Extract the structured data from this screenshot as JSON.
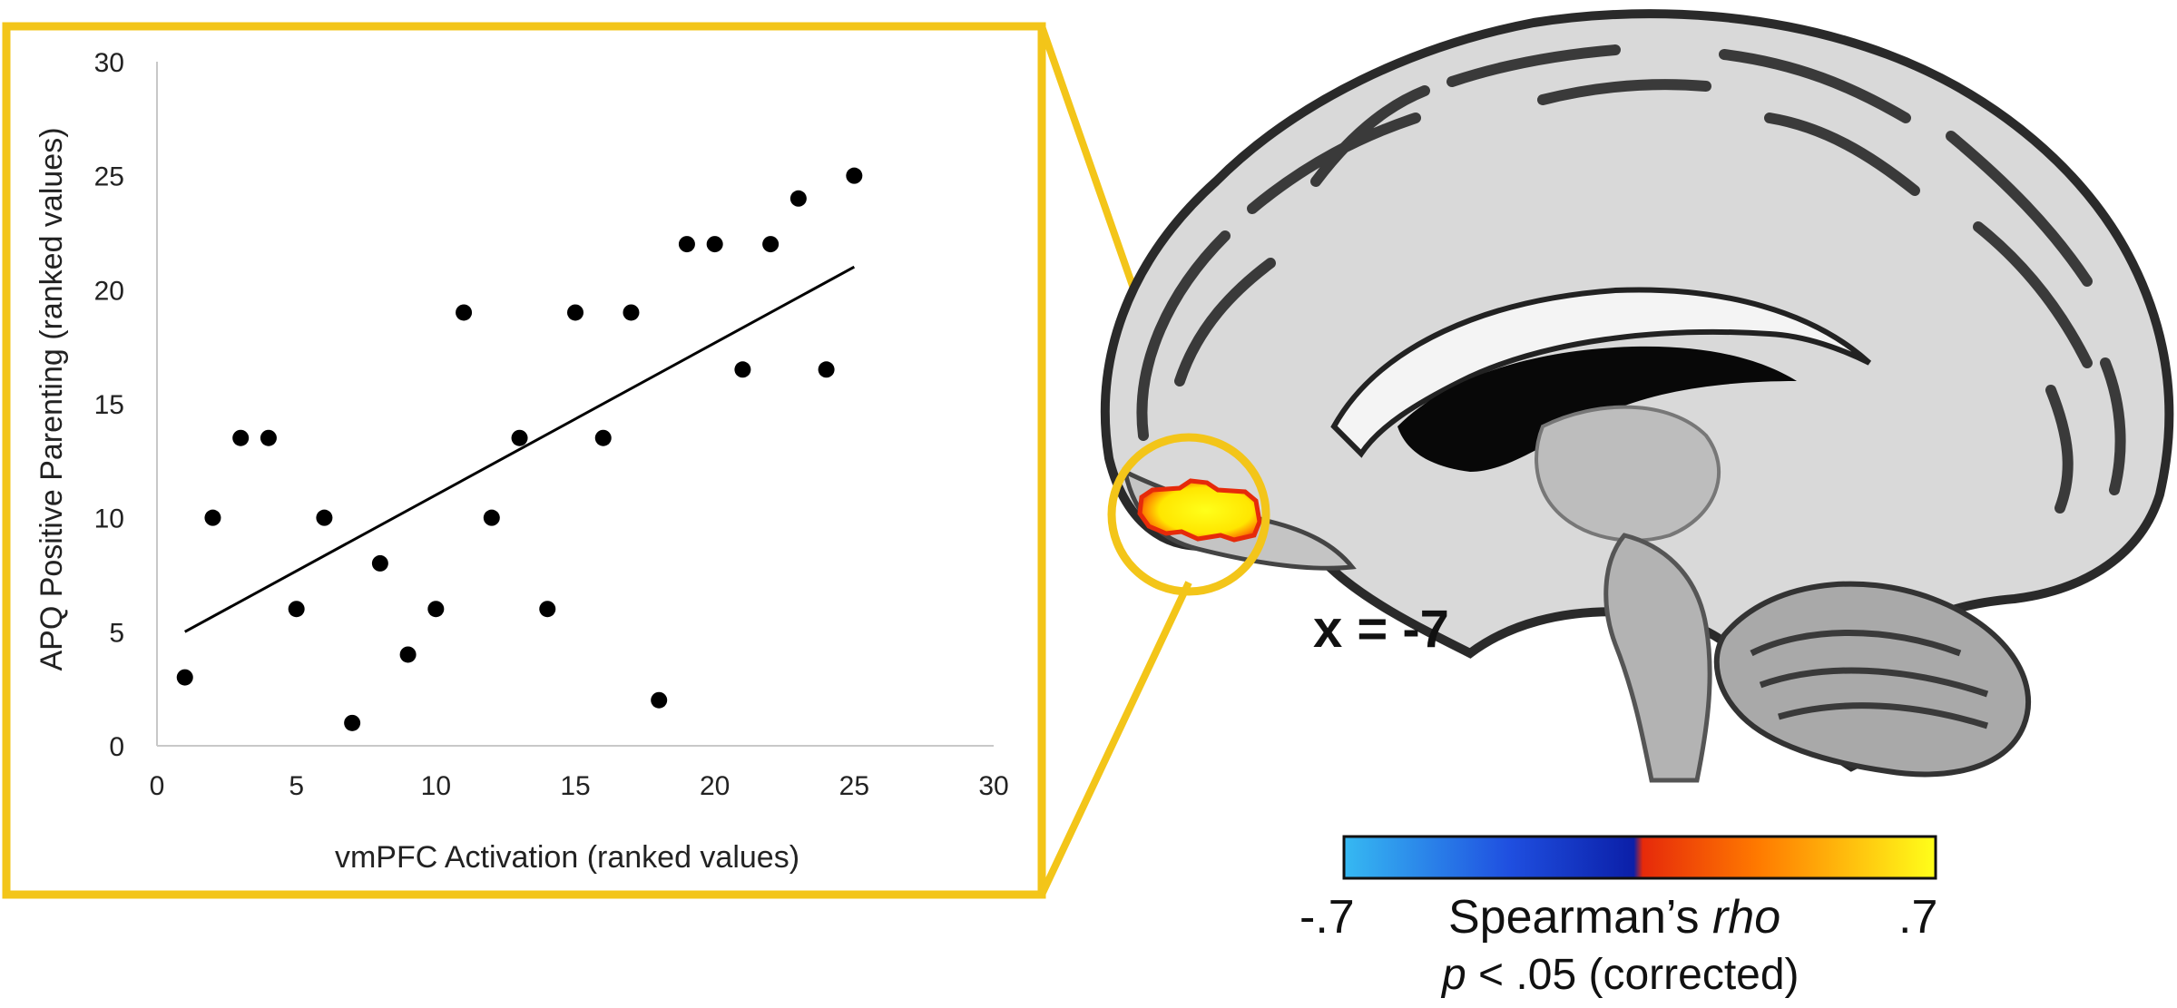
{
  "chart_data": {
    "type": "scatter",
    "title": "",
    "xlabel": "vmPFC Activation (ranked values)",
    "ylabel": "APQ Positive Parenting (ranked values)",
    "xlim": [
      0,
      30
    ],
    "ylim": [
      0,
      30
    ],
    "x_ticks": [
      "0",
      "5",
      "10",
      "15",
      "20",
      "25",
      "30"
    ],
    "y_ticks": [
      "0",
      "5",
      "10",
      "15",
      "20",
      "25",
      "30"
    ],
    "grid": false,
    "series": [
      {
        "x": [
          1,
          2,
          3,
          4,
          5,
          6,
          7,
          8,
          9,
          10,
          11,
          12,
          13,
          14,
          15,
          16,
          17,
          18,
          19,
          20,
          21,
          22,
          23,
          24,
          25
        ],
        "y": [
          3,
          10,
          13.5,
          13.5,
          6,
          10,
          1,
          8,
          4,
          6,
          19,
          10,
          13.5,
          6,
          19,
          13.5,
          19,
          2,
          22,
          22,
          16.5,
          22,
          24,
          16.5,
          25
        ]
      }
    ],
    "trendline": {
      "x": [
        1,
        25
      ],
      "y": [
        5,
        21
      ]
    }
  },
  "brain": {
    "slice_label": "x = -7"
  },
  "colorbar": {
    "min_label": "-.7",
    "max_label": ".7",
    "title_prefix": "Spearman’s ",
    "title_italic": "rho",
    "subtitle_italic": "p",
    "subtitle_rest": " < .05 (corrected)",
    "colors": [
      "#36b9f2",
      "#1f4fe0",
      "#0b1fa8",
      "#e62a0a",
      "#ff7a00",
      "#ffff1a"
    ]
  },
  "accent_color": "#f3c519"
}
